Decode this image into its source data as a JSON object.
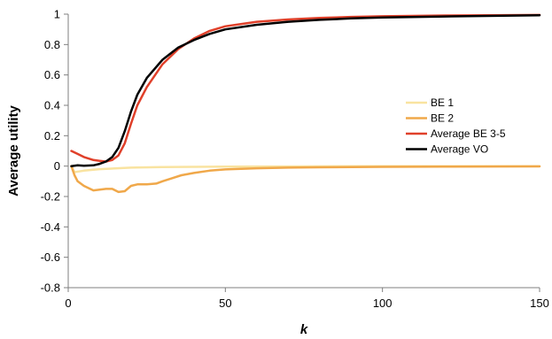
{
  "chart_data": {
    "type": "line",
    "title": "",
    "xlabel": "k",
    "ylabel": "Average utility",
    "xlim": [
      0,
      150
    ],
    "ylim": [
      -0.8,
      1
    ],
    "x_ticks": [
      0,
      50,
      100,
      150
    ],
    "y_ticks": [
      -0.8,
      -0.6,
      -0.4,
      -0.2,
      0,
      0.2,
      0.4,
      0.6,
      0.8,
      1
    ],
    "x_tick_labels": [
      "0",
      "50",
      "100",
      "150"
    ],
    "y_tick_labels": [
      "-0.8",
      "-0.6",
      "-0.4",
      "-0.2",
      "0",
      "0.2",
      "0.4",
      "0.6",
      "0.8",
      "1"
    ],
    "grid": false,
    "legend_position": "right",
    "series": [
      {
        "name": "BE 1",
        "color": "#f9e3a0",
        "x": [
          1,
          2,
          5,
          10,
          20,
          30,
          50,
          100,
          150
        ],
        "y": [
          0,
          -0.04,
          -0.03,
          -0.02,
          -0.01,
          -0.006,
          -0.003,
          -0.001,
          0
        ]
      },
      {
        "name": "BE 2",
        "color": "#f0a84a",
        "x": [
          1,
          2,
          3,
          5,
          8,
          10,
          12,
          14,
          16,
          18,
          20,
          22,
          25,
          28,
          30,
          33,
          36,
          40,
          45,
          50,
          60,
          70,
          80,
          100,
          120,
          150
        ],
        "y": [
          0,
          -0.06,
          -0.1,
          -0.13,
          -0.16,
          -0.155,
          -0.15,
          -0.15,
          -0.17,
          -0.165,
          -0.13,
          -0.12,
          -0.12,
          -0.115,
          -0.1,
          -0.08,
          -0.06,
          -0.045,
          -0.03,
          -0.022,
          -0.014,
          -0.01,
          -0.008,
          -0.005,
          -0.003,
          -0.002
        ]
      },
      {
        "name": "Average BE 3-5",
        "color": "#e0402a",
        "x": [
          1,
          3,
          5,
          8,
          10,
          12,
          14,
          16,
          18,
          20,
          22,
          25,
          30,
          35,
          40,
          45,
          50,
          60,
          70,
          80,
          90,
          100,
          120,
          150
        ],
        "y": [
          0.1,
          0.08,
          0.06,
          0.04,
          0.035,
          0.03,
          0.04,
          0.07,
          0.15,
          0.28,
          0.4,
          0.52,
          0.67,
          0.77,
          0.84,
          0.89,
          0.92,
          0.95,
          0.965,
          0.975,
          0.982,
          0.986,
          0.991,
          0.995
        ]
      },
      {
        "name": "Average VO",
        "color": "#000000",
        "x": [
          1,
          3,
          5,
          8,
          10,
          12,
          14,
          16,
          18,
          20,
          22,
          25,
          30,
          35,
          40,
          45,
          50,
          60,
          70,
          80,
          90,
          100,
          120,
          150
        ],
        "y": [
          0,
          0.005,
          0.003,
          0.005,
          0.015,
          0.03,
          0.06,
          0.12,
          0.23,
          0.36,
          0.47,
          0.58,
          0.7,
          0.78,
          0.83,
          0.87,
          0.9,
          0.93,
          0.95,
          0.963,
          0.972,
          0.978,
          0.985,
          0.993
        ]
      }
    ]
  }
}
